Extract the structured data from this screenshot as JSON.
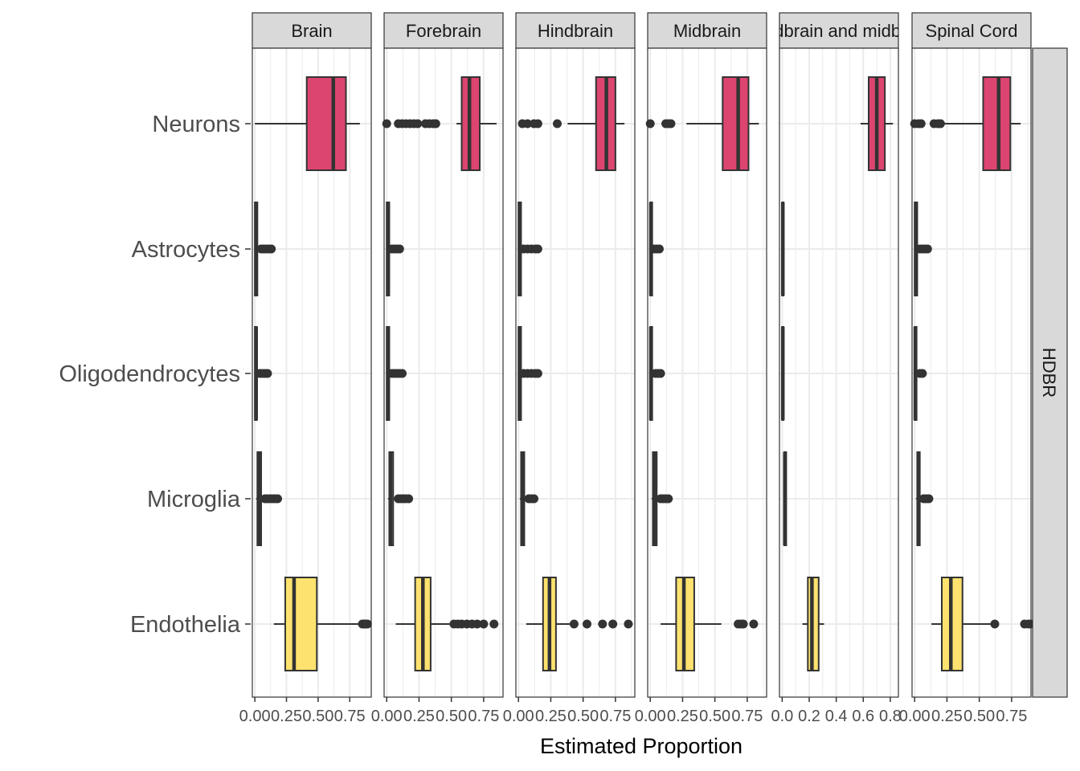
{
  "chart_data": {
    "type": "boxplot",
    "orientation": "horizontal",
    "xlabel": "Estimated Proportion",
    "ylabel": "",
    "row_facet": "HDBR",
    "categories": [
      "Neurons",
      "Astrocytes",
      "Oligodendrocytes",
      "Microglia",
      "Endothelia"
    ],
    "colors": {
      "Neurons": "#DC4570",
      "Endothelia": "#FDE26F",
      "outline": "#333333",
      "grid": "#ebebeb",
      "strip": "#d9d9d9"
    },
    "grid": true,
    "panels": [
      {
        "name": "Brain",
        "xlim": [
          -0.02,
          0.92
        ],
        "ticks": [
          0,
          0.25,
          0.5,
          0.75
        ],
        "tick_labels": [
          "0.00",
          "0.25",
          "0.50",
          "0.75"
        ],
        "boxes": [
          {
            "category": "Neurons",
            "min": 0.0,
            "q1": 0.41,
            "median": 0.62,
            "q3": 0.72,
            "max": 0.83,
            "outliers": []
          },
          {
            "category": "Astrocytes",
            "min": 0.0,
            "q1": 0.0,
            "median": 0.01,
            "q3": 0.02,
            "max": 0.05,
            "outliers": [
              0.05,
              0.07,
              0.09,
              0.11,
              0.13
            ]
          },
          {
            "category": "Oligodendrocytes",
            "min": 0.0,
            "q1": 0.0,
            "median": 0.01,
            "q3": 0.015,
            "max": 0.04,
            "outliers": [
              0.04,
              0.06,
              0.08,
              0.1
            ]
          },
          {
            "category": "Microglia",
            "min": 0.01,
            "q1": 0.02,
            "median": 0.03,
            "q3": 0.05,
            "max": 0.07,
            "outliers": [
              0.08,
              0.1,
              0.12,
              0.14,
              0.16,
              0.18
            ]
          },
          {
            "category": "Endothelia",
            "min": 0.15,
            "q1": 0.24,
            "median": 0.31,
            "q3": 0.49,
            "max": 0.83,
            "outliers": [
              0.85,
              0.86,
              0.87,
              0.88,
              0.89
            ]
          }
        ]
      },
      {
        "name": "Forebrain",
        "xlim": [
          -0.02,
          0.9
        ],
        "ticks": [
          0,
          0.25,
          0.5,
          0.75
        ],
        "tick_labels": [
          "0.00",
          "0.25",
          "0.50",
          "0.75"
        ],
        "boxes": [
          {
            "category": "Neurons",
            "min": 0.54,
            "q1": 0.58,
            "median": 0.64,
            "q3": 0.72,
            "max": 0.85,
            "outliers": [
              0.0,
              0.09,
              0.12,
              0.15,
              0.18,
              0.21,
              0.24,
              0.3,
              0.33,
              0.36,
              0.38
            ]
          },
          {
            "category": "Astrocytes",
            "min": 0.0,
            "q1": 0.0,
            "median": 0.01,
            "q3": 0.02,
            "max": 0.04,
            "outliers": [
              0.04,
              0.06,
              0.08,
              0.1
            ]
          },
          {
            "category": "Oligodendrocytes",
            "min": 0.0,
            "q1": 0.0,
            "median": 0.01,
            "q3": 0.02,
            "max": 0.04,
            "outliers": [
              0.04,
              0.06,
              0.08,
              0.1,
              0.12
            ]
          },
          {
            "category": "Microglia",
            "min": 0.01,
            "q1": 0.02,
            "median": 0.03,
            "q3": 0.05,
            "max": 0.07,
            "outliers": [
              0.09,
              0.11,
              0.13,
              0.15,
              0.17
            ]
          },
          {
            "category": "Endothelia",
            "min": 0.07,
            "q1": 0.22,
            "median": 0.28,
            "q3": 0.34,
            "max": 0.5,
            "outliers": [
              0.52,
              0.55,
              0.58,
              0.62,
              0.66,
              0.7,
              0.75,
              0.83
            ]
          }
        ]
      },
      {
        "name": "Hindbrain",
        "xlim": [
          -0.02,
          0.9
        ],
        "ticks": [
          0,
          0.25,
          0.5,
          0.75
        ],
        "tick_labels": [
          "0.00",
          "0.25",
          "0.50",
          "0.75"
        ],
        "boxes": [
          {
            "category": "Neurons",
            "min": 0.38,
            "q1": 0.6,
            "median": 0.68,
            "q3": 0.75,
            "max": 0.82,
            "outliers": [
              0.03,
              0.07,
              0.12,
              0.15,
              0.3
            ]
          },
          {
            "category": "Astrocytes",
            "min": 0.0,
            "q1": 0.0,
            "median": 0.01,
            "q3": 0.02,
            "max": 0.04,
            "outliers": [
              0.04,
              0.07,
              0.1,
              0.13,
              0.15
            ]
          },
          {
            "category": "Oligodendrocytes",
            "min": 0.0,
            "q1": 0.0,
            "median": 0.01,
            "q3": 0.02,
            "max": 0.04,
            "outliers": [
              0.04,
              0.07,
              0.1,
              0.13,
              0.15
            ]
          },
          {
            "category": "Microglia",
            "min": 0.01,
            "q1": 0.02,
            "median": 0.03,
            "q3": 0.045,
            "max": 0.06,
            "outliers": [
              0.08,
              0.1,
              0.12
            ]
          },
          {
            "category": "Endothelia",
            "min": 0.06,
            "q1": 0.19,
            "median": 0.24,
            "q3": 0.29,
            "max": 0.42,
            "outliers": [
              0.43,
              0.53,
              0.65,
              0.73,
              0.85
            ]
          }
        ]
      },
      {
        "name": "Midbrain",
        "xlim": [
          -0.02,
          0.9
        ],
        "ticks": [
          0,
          0.25,
          0.5,
          0.75
        ],
        "tick_labels": [
          "0.00",
          "0.25",
          "0.50",
          "0.75"
        ],
        "boxes": [
          {
            "category": "Neurons",
            "min": 0.28,
            "q1": 0.56,
            "median": 0.68,
            "q3": 0.76,
            "max": 0.84,
            "outliers": [
              0.0,
              0.12,
              0.14,
              0.16
            ]
          },
          {
            "category": "Astrocytes",
            "min": 0.0,
            "q1": 0.0,
            "median": 0.005,
            "q3": 0.015,
            "max": 0.03,
            "outliers": [
              0.03,
              0.05,
              0.07
            ]
          },
          {
            "category": "Oligodendrocytes",
            "min": 0.0,
            "q1": 0.0,
            "median": 0.005,
            "q3": 0.015,
            "max": 0.03,
            "outliers": [
              0.04,
              0.06,
              0.08
            ]
          },
          {
            "category": "Microglia",
            "min": 0.01,
            "q1": 0.02,
            "median": 0.035,
            "q3": 0.05,
            "max": 0.07,
            "outliers": [
              0.08,
              0.1,
              0.12,
              0.14
            ]
          },
          {
            "category": "Endothelia",
            "min": 0.08,
            "q1": 0.2,
            "median": 0.26,
            "q3": 0.34,
            "max": 0.55,
            "outliers": [
              0.68,
              0.7,
              0.72,
              0.8
            ]
          }
        ]
      },
      {
        "name": "Hindbrain and midbrain",
        "xlim": [
          -0.02,
          0.86
        ],
        "ticks": [
          0,
          0.2,
          0.4,
          0.6,
          0.8
        ],
        "tick_labels": [
          "0.0",
          "0.2",
          "0.4",
          "0.6",
          "0.8"
        ],
        "boxes": [
          {
            "category": "Neurons",
            "min": 0.58,
            "q1": 0.64,
            "median": 0.7,
            "q3": 0.76,
            "max": 0.82,
            "outliers": []
          },
          {
            "category": "Astrocytes",
            "min": 0.0,
            "q1": 0.0,
            "median": 0.005,
            "q3": 0.01,
            "max": 0.015,
            "outliers": []
          },
          {
            "category": "Oligodendrocytes",
            "min": 0.0,
            "q1": 0.0,
            "median": 0.005,
            "q3": 0.01,
            "max": 0.015,
            "outliers": []
          },
          {
            "category": "Microglia",
            "min": 0.01,
            "q1": 0.015,
            "median": 0.02,
            "q3": 0.03,
            "max": 0.035,
            "outliers": []
          },
          {
            "category": "Endothelia",
            "min": 0.15,
            "q1": 0.19,
            "median": 0.22,
            "q3": 0.27,
            "max": 0.31,
            "outliers": []
          }
        ]
      },
      {
        "name": "Spinal Cord",
        "xlim": [
          -0.02,
          0.9
        ],
        "ticks": [
          0,
          0.25,
          0.5,
          0.75
        ],
        "tick_labels": [
          "0.00",
          "0.25",
          "0.50",
          "0.75"
        ],
        "boxes": [
          {
            "category": "Neurons",
            "min": 0.2,
            "q1": 0.53,
            "median": 0.65,
            "q3": 0.74,
            "max": 0.82,
            "outliers": [
              0.0,
              0.03,
              0.05,
              0.15,
              0.18,
              0.2
            ]
          },
          {
            "category": "Astrocytes",
            "min": 0.0,
            "q1": 0.0,
            "median": 0.01,
            "q3": 0.02,
            "max": 0.04,
            "outliers": [
              0.04,
              0.06,
              0.08,
              0.1
            ]
          },
          {
            "category": "Oligodendrocytes",
            "min": 0.0,
            "q1": 0.0,
            "median": 0.005,
            "q3": 0.015,
            "max": 0.03,
            "outliers": [
              0.04,
              0.06
            ]
          },
          {
            "category": "Microglia",
            "min": 0.01,
            "q1": 0.02,
            "median": 0.03,
            "q3": 0.04,
            "max": 0.05,
            "outliers": [
              0.07,
              0.09,
              0.11
            ]
          },
          {
            "category": "Endothelia",
            "min": 0.13,
            "q1": 0.21,
            "median": 0.28,
            "q3": 0.37,
            "max": 0.6,
            "outliers": [
              0.62,
              0.85,
              0.88,
              0.9
            ]
          }
        ]
      }
    ]
  }
}
